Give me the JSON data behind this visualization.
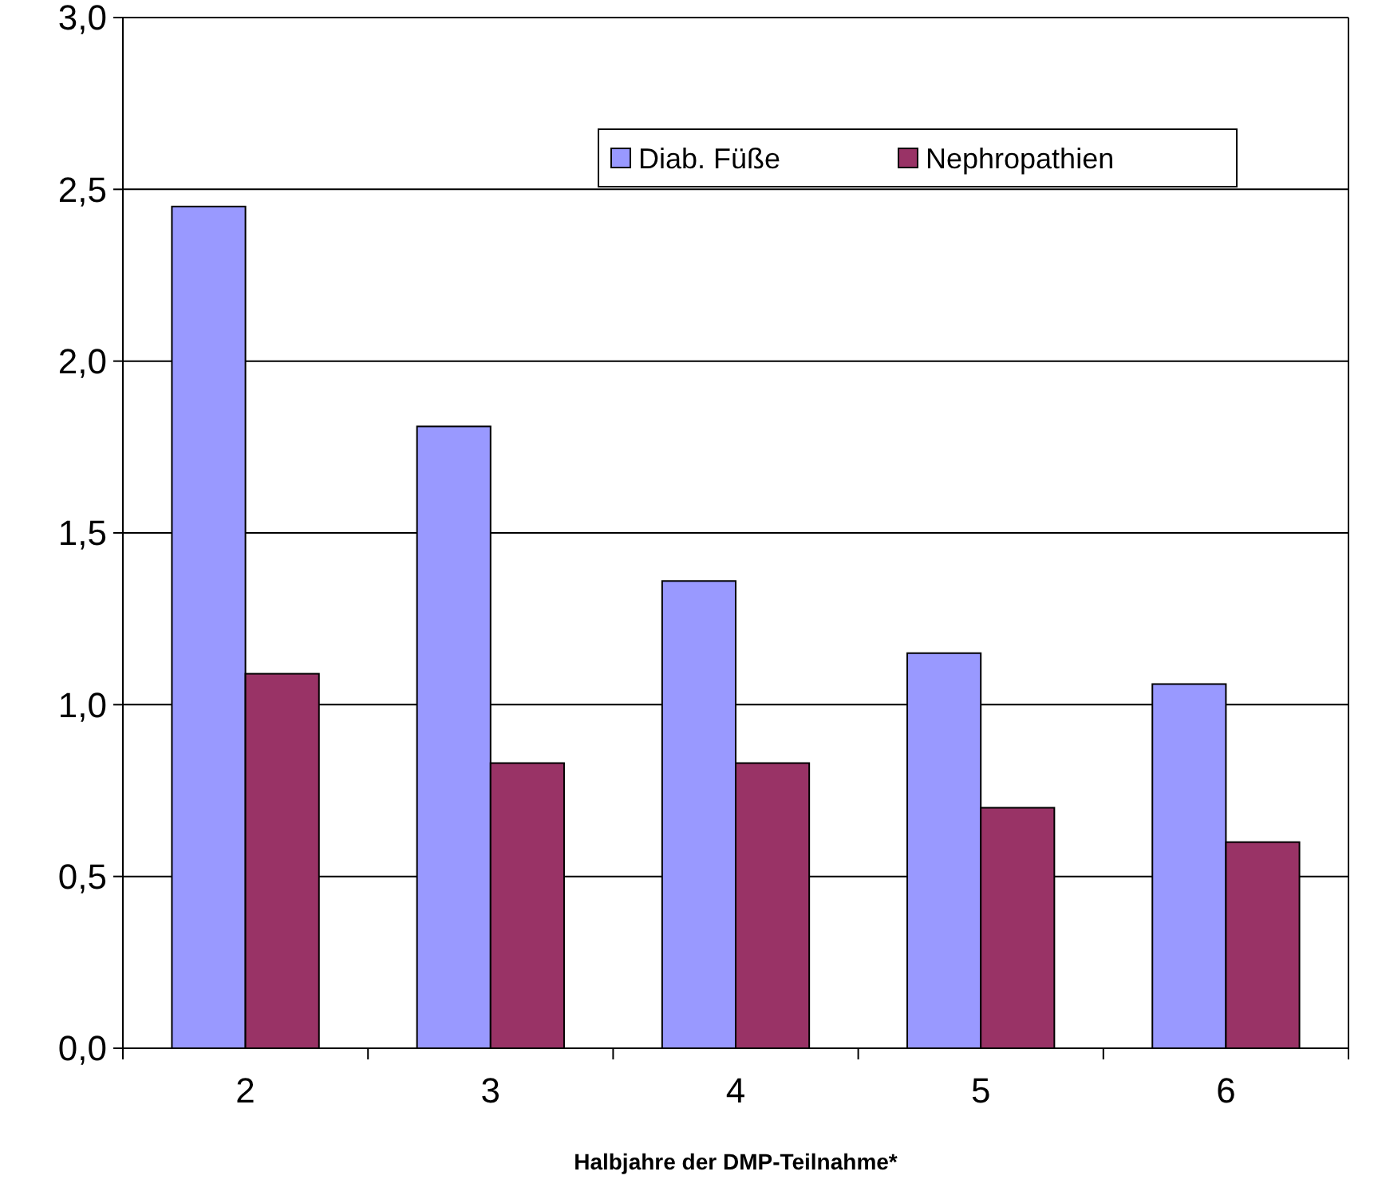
{
  "chart_data": {
    "type": "bar",
    "xlabel": "Halbjahre der DMP-Teilnahme*",
    "categories": [
      "2",
      "3",
      "4",
      "5",
      "6"
    ],
    "series": [
      {
        "name": "Diab. Füße",
        "color": "#9999ff",
        "values": [
          2.45,
          1.81,
          1.36,
          1.15,
          1.06
        ]
      },
      {
        "name": "Nephropathien",
        "color": "#993366",
        "values": [
          1.09,
          0.83,
          0.83,
          0.7,
          0.6
        ]
      }
    ],
    "ylim": [
      0,
      3
    ],
    "yticks": [
      {
        "value": 0,
        "label": "0,0"
      },
      {
        "value": 0.5,
        "label": "0,5"
      },
      {
        "value": 1,
        "label": "1,0"
      },
      {
        "value": 1.5,
        "label": "1,5"
      },
      {
        "value": 2,
        "label": "2,0"
      },
      {
        "value": 2.5,
        "label": "2,5"
      },
      {
        "value": 3,
        "label": "3,0"
      }
    ],
    "grid": "y",
    "legend": "top right"
  }
}
